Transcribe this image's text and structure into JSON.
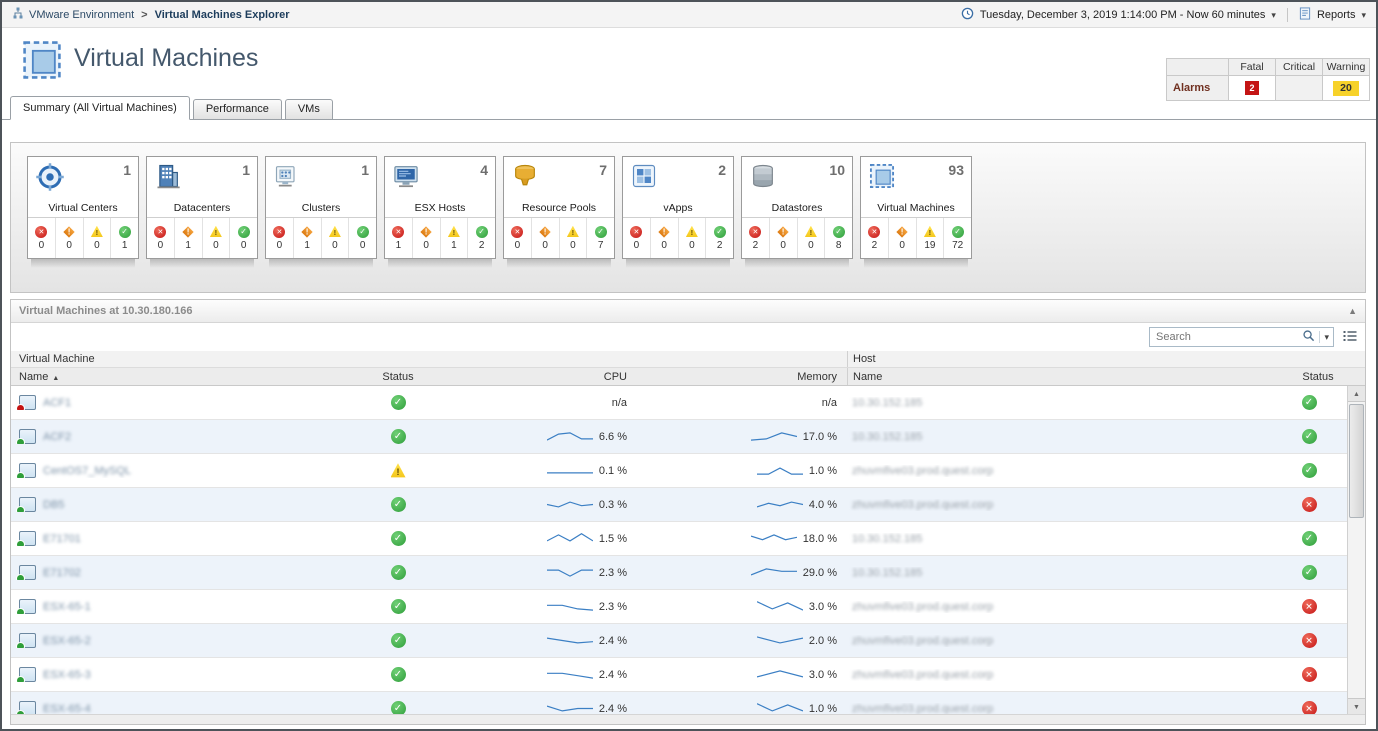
{
  "breadcrumb": {
    "root_label": "VMware Environment",
    "separator": ">",
    "current_label": "Virtual Machines Explorer"
  },
  "topbar": {
    "time_range": "Tuesday, December 3, 2019 1:14:00 PM - Now 60 minutes",
    "reports_label": "Reports"
  },
  "header": {
    "title": "Virtual Machines"
  },
  "alarms_summary": {
    "row_label": "Alarms",
    "col_fatal": "Fatal",
    "col_critical": "Critical",
    "col_warning": "Warning",
    "fatal_count": "2",
    "critical_count": "",
    "warning_count": "20"
  },
  "tabs": [
    {
      "label": "Summary (All Virtual Machines)",
      "active": true
    },
    {
      "label": "Performance",
      "active": false
    },
    {
      "label": "VMs",
      "active": false
    }
  ],
  "tiles": [
    {
      "label": "Virtual Centers",
      "count": "1",
      "icon": "virtual-centers-icon",
      "fatal": "0",
      "critical": "0",
      "warning": "0",
      "normal": "1"
    },
    {
      "label": "Datacenters",
      "count": "1",
      "icon": "datacenters-icon",
      "fatal": "0",
      "critical": "1",
      "warning": "0",
      "normal": "0"
    },
    {
      "label": "Clusters",
      "count": "1",
      "icon": "clusters-icon",
      "fatal": "0",
      "critical": "1",
      "warning": "0",
      "normal": "0"
    },
    {
      "label": "ESX Hosts",
      "count": "4",
      "icon": "esx-hosts-icon",
      "fatal": "1",
      "critical": "0",
      "warning": "1",
      "normal": "2"
    },
    {
      "label": "Resource Pools",
      "count": "7",
      "icon": "resource-pools-icon",
      "fatal": "0",
      "critical": "0",
      "warning": "0",
      "normal": "7"
    },
    {
      "label": "vApps",
      "count": "2",
      "icon": "vapps-icon",
      "fatal": "0",
      "critical": "0",
      "warning": "0",
      "normal": "2"
    },
    {
      "label": "Datastores",
      "count": "10",
      "icon": "datastores-icon",
      "fatal": "2",
      "critical": "0",
      "warning": "0",
      "normal": "8"
    },
    {
      "label": "Virtual Machines",
      "count": "93",
      "icon": "virtual-machines-icon",
      "fatal": "2",
      "critical": "0",
      "warning": "19",
      "normal": "72"
    }
  ],
  "panel": {
    "title": "Virtual Machines at 10.30.180.166"
  },
  "toolbar": {
    "search_placeholder": "Search"
  },
  "table": {
    "group_headers": [
      "Virtual Machine",
      "Host"
    ],
    "columns": [
      "Name",
      "Status",
      "CPU",
      "Memory",
      "Name",
      "Status"
    ],
    "rows": [
      {
        "name": "ACF1",
        "vm_dot": "fatal",
        "status": "normal",
        "cpu": "n/a",
        "memory": "n/a",
        "cpu_spark": [],
        "mem_spark": [],
        "host": "10.30.152.185",
        "host_status": "normal"
      },
      {
        "name": "ACF2",
        "vm_dot": "normal",
        "status": "normal",
        "cpu": "6.6 %",
        "memory": "17.0 %",
        "cpu_spark": [
          8,
          3,
          2,
          7,
          7
        ],
        "mem_spark": [
          8,
          7,
          2,
          5
        ],
        "host": "10.30.152.185",
        "host_status": "normal"
      },
      {
        "name": "CentOS7_MySQL",
        "vm_dot": "normal",
        "status": "warning",
        "cpu": "0.1 %",
        "memory": "1.0 %",
        "cpu_spark": [
          7,
          7,
          7,
          7,
          7
        ],
        "mem_spark": [
          8,
          8,
          3,
          8,
          8
        ],
        "host": "zhuvmfive03.prod.quest.corp",
        "host_status": "normal"
      },
      {
        "name": "DB5",
        "vm_dot": "normal",
        "status": "normal",
        "cpu": "0.3 %",
        "memory": "4.0 %",
        "cpu_spark": [
          5,
          7,
          3,
          6,
          5
        ],
        "mem_spark": [
          7,
          4,
          6,
          3,
          5
        ],
        "host": "zhuvmfive03.prod.quest.corp",
        "host_status": "fatal"
      },
      {
        "name": "E71701",
        "vm_dot": "normal",
        "status": "normal",
        "cpu": "1.5 %",
        "memory": "18.0 %",
        "cpu_spark": [
          7,
          2,
          7,
          1,
          7
        ],
        "mem_spark": [
          3,
          6,
          2,
          6,
          4
        ],
        "host": "10.30.152.185",
        "host_status": "normal"
      },
      {
        "name": "E71702",
        "vm_dot": "normal",
        "status": "normal",
        "cpu": "2.3 %",
        "memory": "29.0 %",
        "cpu_spark": [
          3,
          3,
          8,
          3,
          3
        ],
        "mem_spark": [
          7,
          2,
          4,
          4
        ],
        "host": "10.30.152.185",
        "host_status": "normal"
      },
      {
        "name": "ESX-65-1",
        "vm_dot": "normal",
        "status": "normal",
        "cpu": "2.3 %",
        "memory": "3.0 %",
        "cpu_spark": [
          4,
          4,
          7,
          8
        ],
        "mem_spark": [
          1,
          7,
          2,
          8
        ],
        "host": "zhuvmfive03.prod.quest.corp",
        "host_status": "fatal"
      },
      {
        "name": "ESX-65-2",
        "vm_dot": "normal",
        "status": "normal",
        "cpu": "2.4 %",
        "memory": "2.0 %",
        "cpu_spark": [
          3,
          5,
          7,
          6
        ],
        "mem_spark": [
          2,
          7,
          3
        ],
        "host": "zhuvmfive03.prod.quest.corp",
        "host_status": "fatal"
      },
      {
        "name": "ESX-65-3",
        "vm_dot": "normal",
        "status": "normal",
        "cpu": "2.4 %",
        "memory": "3.0 %",
        "cpu_spark": [
          4,
          4,
          6,
          8
        ],
        "mem_spark": [
          7,
          2,
          7
        ],
        "host": "zhuvmfive03.prod.quest.corp",
        "host_status": "fatal"
      },
      {
        "name": "ESX-65-4",
        "vm_dot": "normal",
        "status": "normal",
        "cpu": "2.4 %",
        "memory": "1.0 %",
        "cpu_spark": [
          3,
          7,
          5,
          5
        ],
        "mem_spark": [
          1,
          7,
          2,
          7
        ],
        "host": "zhuvmfive03.prod.quest.corp",
        "host_status": "fatal"
      }
    ]
  },
  "colors": {
    "accent_blue": "#3b7fc4",
    "fatal_red": "#c41414",
    "warning_yellow": "#f7d22a",
    "normal_green": "#2f9e3a",
    "critical_orange": "#dd7b12"
  }
}
